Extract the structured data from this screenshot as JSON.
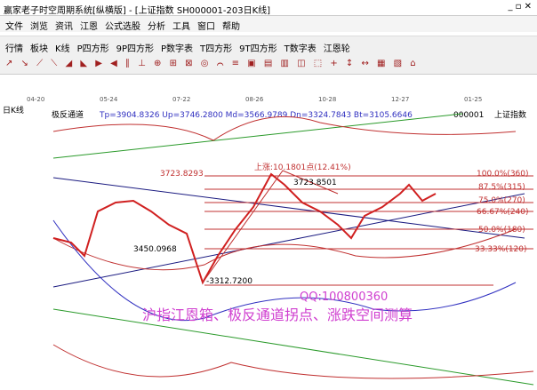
{
  "window": {
    "title": "赢家老子时空周期系统[纵横版] - [上证指数  SH000001-203日K线]"
  },
  "menu": [
    "文件",
    "浏览",
    "资讯",
    "江恩",
    "公式选股",
    "分析",
    "工具",
    "窗口",
    "帮助"
  ],
  "toolbar": [
    "行情",
    "板块",
    "K线",
    "P四方形",
    "9P四方形",
    "P数字表",
    "T四方形",
    "9T四方形",
    "T数字表",
    "江恩轮"
  ],
  "date_axis": [
    "04-20",
    "05-24",
    "07-22",
    "08-26",
    "10-28",
    "12-27",
    "01-25"
  ],
  "chart": {
    "period": "日K线",
    "indicator": "极反通道",
    "params": "Tp=3904.8326  Up=3746.2800  Md=3566.9789  Dn=3324.7843  Bt=3105.6646",
    "code": "000001",
    "name": "上证指数",
    "rise_label": "上涨:10.1801点(12.41%)",
    "price_labels": [
      "3723.8293",
      "3723.8501",
      "3450.0968",
      "-3312.7200"
    ],
    "gann_levels": [
      "100.0%(360)",
      "87.5%(315)",
      "75.0%(270)",
      "66.67%(240)",
      "50.0%(180)",
      "33.33%(120)"
    ],
    "watermark": "QQ:100800360",
    "caption": "沪指江恩箱、极反通道拐点、涨跌空间测算"
  }
}
